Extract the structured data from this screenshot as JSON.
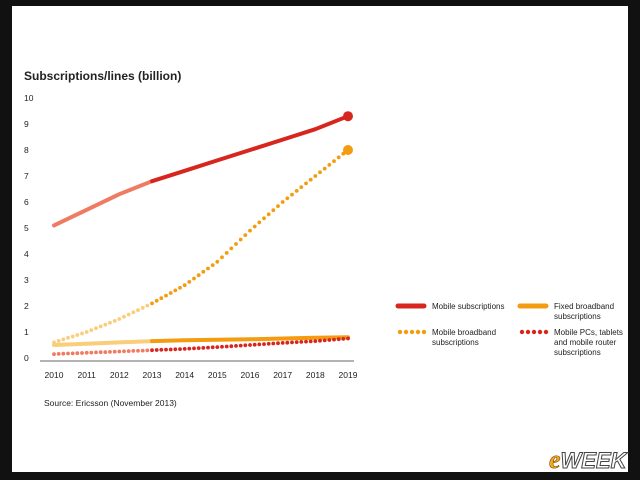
{
  "watermark": {
    "e": "e",
    "rest": "WEEK"
  },
  "chart_data": {
    "type": "line",
    "ylabel": "Subscriptions/lines (billion)",
    "x": [
      2010,
      2011,
      2012,
      2013,
      2014,
      2015,
      2016,
      2017,
      2018,
      2019
    ],
    "x_tick_labels": [
      "2010",
      "2011",
      "2012",
      "2013",
      "2014",
      "2015",
      "2016",
      "2017",
      "2018",
      "2019"
    ],
    "ylim": [
      0,
      10
    ],
    "y_ticks": [
      0,
      1,
      2,
      3,
      4,
      5,
      6,
      7,
      8,
      9,
      10
    ],
    "y_tick_labels": [
      "0",
      "1",
      "2",
      "3",
      "4",
      "5",
      "6",
      "7",
      "8",
      "9",
      "10"
    ],
    "forecast_from": 2013,
    "series": [
      {
        "name": "Mobile subscriptions",
        "style": "solid",
        "color": "#d7261e",
        "history_color": "#ee7b62",
        "values": [
          5.1,
          5.7,
          6.3,
          6.8,
          7.2,
          7.6,
          8.0,
          8.4,
          8.8,
          9.3
        ]
      },
      {
        "name": "Mobile broadband subscriptions",
        "style": "dotted",
        "color": "#f39c12",
        "history_color": "#f9cd7a",
        "values": [
          0.6,
          1.0,
          1.5,
          2.1,
          2.8,
          3.7,
          4.9,
          6.0,
          7.0,
          8.0
        ]
      },
      {
        "name": "Fixed broadband subscriptions",
        "style": "solid",
        "color": "#f39c12",
        "history_color": "#f9cd7a",
        "values": [
          0.5,
          0.55,
          0.6,
          0.65,
          0.68,
          0.7,
          0.72,
          0.75,
          0.78,
          0.8
        ]
      },
      {
        "name": "Mobile PCs, tablets and mobile router subscriptions",
        "style": "dotted",
        "color": "#d7261e",
        "history_color": "#ee7b62",
        "values": [
          0.15,
          0.2,
          0.25,
          0.3,
          0.35,
          0.42,
          0.5,
          0.58,
          0.65,
          0.75
        ]
      }
    ],
    "legend": [
      {
        "lines": [
          "Mobile subscriptions"
        ]
      },
      {
        "lines": [
          "Fixed broadband",
          "subscriptions"
        ]
      },
      {
        "lines": [
          "Mobile broadband",
          "subscriptions"
        ]
      },
      {
        "lines": [
          "Mobile PCs, tablets",
          "and mobile router",
          "subscriptions"
        ]
      }
    ],
    "legend_position": "right",
    "source": "Source: Ericsson (November 2013)",
    "grid": false
  }
}
